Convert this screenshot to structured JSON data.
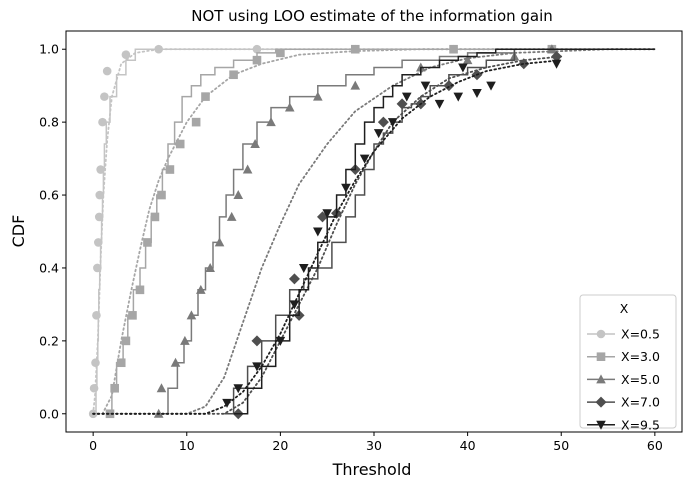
{
  "chart_data": {
    "type": "line",
    "title": "NOT using LOO estimate of the information gain",
    "xlabel": "Threshold",
    "ylabel": "CDF",
    "xlim": [
      -2.9,
      62.9
    ],
    "ylim": [
      -0.05,
      1.05
    ],
    "xticks": [
      0,
      10,
      20,
      30,
      40,
      50,
      60
    ],
    "yticks": [
      0.0,
      0.2,
      0.4,
      0.6,
      0.8,
      1.0
    ],
    "grid": false,
    "legend": {
      "title": "X",
      "location": "lower right"
    },
    "series": [
      {
        "name": "X=0.5",
        "color": "#c4c4c4",
        "marker": "circle",
        "step_x": [
          0,
          0.3,
          0.4,
          0.5,
          0.55,
          0.6,
          0.7,
          0.8,
          0.9,
          1.0,
          1.1,
          1.2,
          1.4,
          1.8,
          2.5,
          3.5,
          4.5,
          60
        ],
        "step_y": [
          0,
          0.07,
          0.14,
          0.2,
          0.27,
          0.34,
          0.4,
          0.47,
          0.54,
          0.6,
          0.67,
          0.74,
          0.8,
          0.87,
          0.93,
          0.97,
          1.0,
          1.0
        ],
        "markers": [
          [
            0,
            0.0
          ],
          [
            0.1,
            0.07
          ],
          [
            0.25,
            0.14
          ],
          [
            0.35,
            0.27
          ],
          [
            0.45,
            0.4
          ],
          [
            0.55,
            0.47
          ],
          [
            0.65,
            0.54
          ],
          [
            0.7,
            0.6
          ],
          [
            0.8,
            0.67
          ],
          [
            1.0,
            0.8
          ],
          [
            1.2,
            0.87
          ],
          [
            1.5,
            0.94
          ],
          [
            3.5,
            0.985
          ],
          [
            7,
            1.0
          ],
          [
            17.5,
            1.0
          ],
          [
            28,
            1.0
          ],
          [
            38.5,
            1.0
          ],
          [
            49,
            1.0
          ]
        ],
        "fit_x": [
          0,
          0.2,
          0.5,
          0.8,
          1.1,
          1.5,
          2,
          3,
          4.5,
          7,
          12,
          20,
          60
        ],
        "fit_y": [
          0,
          0.05,
          0.2,
          0.42,
          0.6,
          0.75,
          0.87,
          0.96,
          0.99,
          1.0,
          1.0,
          1.0,
          1.0
        ]
      },
      {
        "name": "X=3.0",
        "color": "#a6a6a6",
        "marker": "square",
        "step_x": [
          1.5,
          2,
          2.5,
          3.2,
          3.7,
          4.3,
          5,
          5.6,
          6.2,
          6.8,
          7.4,
          8,
          8.7,
          9.5,
          10.5,
          11.5,
          13,
          15,
          17.5,
          19.5,
          60
        ],
        "step_y": [
          0,
          0.07,
          0.14,
          0.2,
          0.27,
          0.34,
          0.4,
          0.47,
          0.54,
          0.6,
          0.67,
          0.74,
          0.8,
          0.87,
          0.9,
          0.93,
          0.95,
          0.97,
          0.99,
          1.0,
          1.0
        ],
        "markers": [
          [
            1.8,
            0.0
          ],
          [
            2.3,
            0.07
          ],
          [
            3,
            0.14
          ],
          [
            3.5,
            0.2
          ],
          [
            4.2,
            0.27
          ],
          [
            5,
            0.34
          ],
          [
            5.8,
            0.47
          ],
          [
            6.6,
            0.54
          ],
          [
            7.3,
            0.6
          ],
          [
            8.2,
            0.67
          ],
          [
            9.3,
            0.74
          ],
          [
            11,
            0.8
          ],
          [
            12,
            0.87
          ],
          [
            15,
            0.93
          ],
          [
            17.5,
            0.97
          ],
          [
            20,
            0.99
          ],
          [
            28,
            1.0
          ],
          [
            38.5,
            1.0
          ],
          [
            49,
            1.0
          ]
        ],
        "fit_x": [
          0,
          1,
          2,
          3,
          4,
          5,
          6,
          7,
          8,
          10,
          12,
          15,
          18,
          22,
          28,
          35,
          60
        ],
        "fit_y": [
          0,
          0.0,
          0.05,
          0.2,
          0.33,
          0.45,
          0.56,
          0.64,
          0.7,
          0.8,
          0.87,
          0.93,
          0.96,
          0.985,
          0.995,
          1.0,
          1.0
        ]
      },
      {
        "name": "X=5.0",
        "color": "#7a7a7a",
        "marker": "triangle-up",
        "step_x": [
          7,
          8,
          9,
          9.7,
          10.5,
          11.2,
          12,
          12.8,
          13.5,
          14.2,
          15,
          16,
          17.5,
          19,
          21,
          24,
          27,
          30,
          33,
          37,
          40,
          45,
          60
        ],
        "step_y": [
          0,
          0.07,
          0.14,
          0.2,
          0.27,
          0.34,
          0.4,
          0.47,
          0.54,
          0.6,
          0.67,
          0.74,
          0.8,
          0.84,
          0.87,
          0.9,
          0.93,
          0.95,
          0.97,
          0.98,
          0.99,
          1.0,
          1.0
        ],
        "markers": [
          [
            7,
            0.0
          ],
          [
            7.3,
            0.07
          ],
          [
            8.8,
            0.14
          ],
          [
            9.8,
            0.2
          ],
          [
            10.5,
            0.27
          ],
          [
            11.5,
            0.34
          ],
          [
            12.5,
            0.4
          ],
          [
            13.5,
            0.47
          ],
          [
            14.8,
            0.54
          ],
          [
            15.5,
            0.6
          ],
          [
            16.5,
            0.67
          ],
          [
            17.3,
            0.74
          ],
          [
            19,
            0.8
          ],
          [
            21,
            0.84
          ],
          [
            24,
            0.87
          ],
          [
            28,
            0.9
          ],
          [
            35,
            0.95
          ],
          [
            40,
            0.97
          ],
          [
            45,
            0.98
          ],
          [
            49,
            1.0
          ]
        ],
        "fit_x": [
          0,
          8,
          10,
          12,
          14,
          16,
          18,
          20,
          22,
          25,
          28,
          32,
          36,
          40,
          45,
          50,
          55,
          60
        ],
        "fit_y": [
          0,
          0.0,
          0.0,
          0.02,
          0.1,
          0.25,
          0.4,
          0.52,
          0.63,
          0.74,
          0.83,
          0.9,
          0.95,
          0.975,
          0.99,
          0.995,
          1.0,
          1.0
        ]
      },
      {
        "name": "X=7.0",
        "color": "#4f4f4f",
        "marker": "diamond",
        "step_x": [
          14,
          15,
          16.5,
          18,
          19.5,
          21,
          22.5,
          24,
          25.5,
          27,
          28,
          29,
          30,
          31,
          32,
          33,
          34,
          35,
          36,
          38,
          40,
          42,
          45,
          60
        ],
        "step_y": [
          0,
          0.07,
          0.13,
          0.2,
          0.27,
          0.34,
          0.37,
          0.4,
          0.47,
          0.54,
          0.6,
          0.67,
          0.74,
          0.77,
          0.8,
          0.84,
          0.85,
          0.87,
          0.9,
          0.93,
          0.95,
          0.97,
          1.0,
          1.0
        ],
        "markers": [
          [
            15.5,
            0.0
          ],
          [
            17.5,
            0.2
          ],
          [
            21.5,
            0.37
          ],
          [
            22,
            0.27
          ],
          [
            24.5,
            0.54
          ],
          [
            26,
            0.55
          ],
          [
            28,
            0.67
          ],
          [
            31,
            0.8
          ],
          [
            33,
            0.85
          ],
          [
            35,
            0.85
          ],
          [
            38,
            0.9
          ],
          [
            41,
            0.93
          ],
          [
            46,
            0.96
          ],
          [
            49.5,
            0.98
          ]
        ],
        "fit_x": [
          0,
          14,
          16,
          18,
          20,
          22,
          24,
          26,
          28,
          30,
          32,
          35,
          38,
          42,
          46,
          50
        ],
        "fit_y": [
          0,
          0.0,
          0.03,
          0.1,
          0.2,
          0.3,
          0.4,
          0.52,
          0.63,
          0.72,
          0.8,
          0.87,
          0.92,
          0.95,
          0.97,
          0.98
        ]
      },
      {
        "name": "X=9.5",
        "color": "#1e1e1e",
        "marker": "triangle-down",
        "step_x": [
          15,
          16.5,
          18,
          19.5,
          21,
          22,
          23,
          24,
          25,
          26,
          27,
          28,
          29,
          30,
          31,
          32,
          33,
          35,
          37,
          39,
          41,
          43,
          60
        ],
        "step_y": [
          0,
          0.07,
          0.13,
          0.2,
          0.27,
          0.34,
          0.4,
          0.47,
          0.54,
          0.6,
          0.67,
          0.74,
          0.8,
          0.84,
          0.87,
          0.9,
          0.93,
          0.95,
          0.97,
          0.98,
          0.99,
          1.0,
          1.0
        ],
        "markers": [
          [
            14.3,
            0.03
          ],
          [
            15.5,
            0.07
          ],
          [
            17.5,
            0.13
          ],
          [
            20,
            0.2
          ],
          [
            21.5,
            0.3
          ],
          [
            22.5,
            0.4
          ],
          [
            24,
            0.5
          ],
          [
            25,
            0.55
          ],
          [
            27,
            0.62
          ],
          [
            29,
            0.7
          ],
          [
            30.5,
            0.77
          ],
          [
            32,
            0.8
          ],
          [
            33.5,
            0.87
          ],
          [
            35.5,
            0.9
          ],
          [
            37,
            0.85
          ],
          [
            39,
            0.87
          ],
          [
            39.5,
            0.95
          ],
          [
            41,
            0.88
          ],
          [
            42.5,
            0.9
          ],
          [
            49.5,
            0.96
          ]
        ],
        "fit_x": [
          0,
          12,
          14,
          16,
          18,
          20,
          22,
          24,
          26,
          28,
          30,
          33,
          36,
          39,
          42,
          46,
          50
        ],
        "fit_y": [
          0,
          0.0,
          0.02,
          0.06,
          0.13,
          0.22,
          0.33,
          0.44,
          0.55,
          0.64,
          0.72,
          0.81,
          0.87,
          0.91,
          0.94,
          0.96,
          0.97
        ]
      }
    ]
  }
}
